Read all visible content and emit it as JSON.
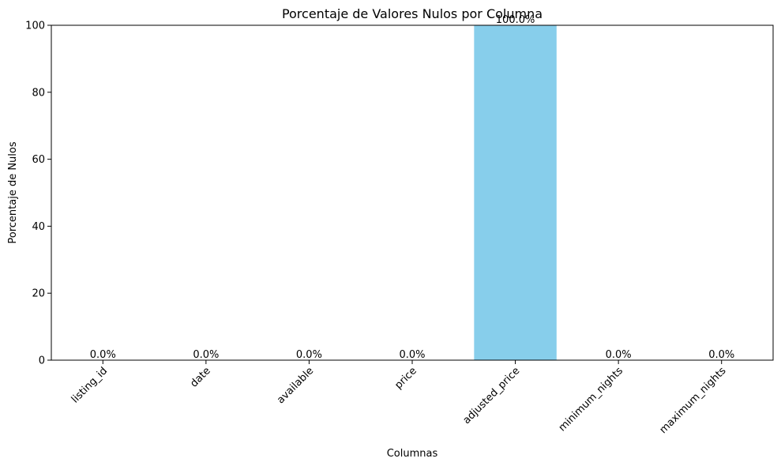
{
  "chart_data": {
    "type": "bar",
    "title": "Porcentaje de Valores Nulos por Columna",
    "xlabel": "Columnas",
    "ylabel": "Porcentaje de Nulos",
    "categories": [
      "listing_id",
      "date",
      "available",
      "price",
      "adjusted_price",
      "minimum_nights",
      "maximum_nights"
    ],
    "values": [
      0.0,
      0.0,
      0.0,
      0.0,
      100.0,
      0.0,
      0.0
    ],
    "data_labels": [
      "0.0%",
      "0.0%",
      "0.0%",
      "0.0%",
      "100.0%",
      "0.0%",
      "0.0%"
    ],
    "ylim": [
      0,
      100
    ],
    "yticks": [
      0,
      20,
      40,
      60,
      80,
      100
    ],
    "ytick_labels": [
      "0",
      "20",
      "40",
      "60",
      "80",
      "100"
    ],
    "bar_color": "#87ceeb",
    "grid": false,
    "legend": "none"
  }
}
